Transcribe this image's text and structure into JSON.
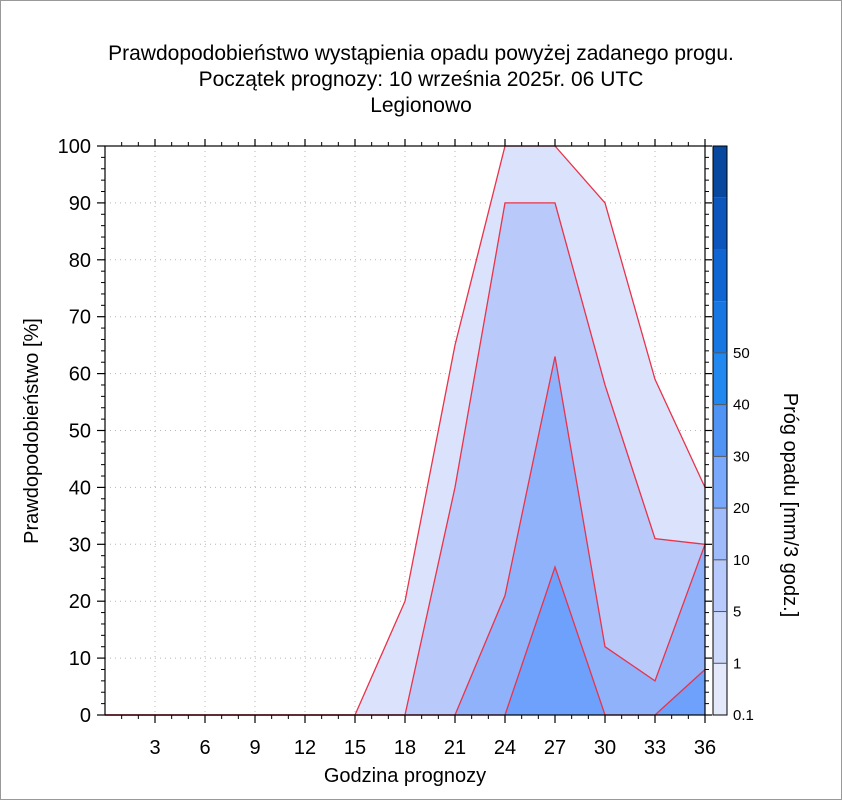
{
  "chart_data": {
    "type": "area",
    "title": "Prawdopodobieństwo wystąpienia opadu powyżej zadanego progu.",
    "subtitle": "Początek prognozy: 10 września 2025r. 06 UTC",
    "location": "Legionowo",
    "xlabel": "Godzina prognozy",
    "ylabel": "Prawdopodobieństwo [%]",
    "colorbar_label": "Próg opadu [mm/3 godz.]",
    "x": [
      0,
      3,
      6,
      9,
      12,
      15,
      18,
      21,
      24,
      27,
      30,
      33,
      36
    ],
    "x_tick_labels": [
      "3",
      "6",
      "9",
      "12",
      "15",
      "18",
      "21",
      "24",
      "27",
      "30",
      "33",
      "36"
    ],
    "xlim": [
      0,
      36
    ],
    "ylim": [
      0,
      100
    ],
    "y_tick_labels": [
      "0",
      "10",
      "20",
      "30",
      "40",
      "50",
      "60",
      "70",
      "80",
      "90",
      "100"
    ],
    "series": [
      {
        "name": "0.1",
        "values": [
          0,
          0,
          0,
          0,
          0,
          0,
          20,
          65,
          100,
          100,
          90,
          59,
          40
        ]
      },
      {
        "name": "1",
        "values": [
          0,
          0,
          0,
          0,
          0,
          0,
          0,
          40,
          90,
          90,
          58,
          31,
          30
        ]
      },
      {
        "name": "5",
        "values": [
          0,
          0,
          0,
          0,
          0,
          0,
          0,
          0,
          21,
          63,
          12,
          6,
          30
        ]
      },
      {
        "name": "10",
        "values": [
          0,
          0,
          0,
          0,
          0,
          0,
          0,
          0,
          0,
          26,
          0,
          0,
          8
        ]
      }
    ],
    "colorbar": {
      "tick_labels": [
        "0.1",
        "1",
        "5",
        "10",
        "20",
        "30",
        "40",
        "50"
      ],
      "colors": [
        "#e3e9fb",
        "#cdd9fa",
        "#b8cafb",
        "#9fbbfa",
        "#7aa8fb",
        "#4f94f5",
        "#2188ef",
        "#1677e3",
        "#0f66d2",
        "#0b55bd",
        "#08489f"
      ]
    },
    "band_colors": [
      "#dbe2fb",
      "#b9cafa",
      "#8fb2fa",
      "#6ea1fb"
    ],
    "boundary_color": "#e8334a",
    "grid": "dotted"
  }
}
